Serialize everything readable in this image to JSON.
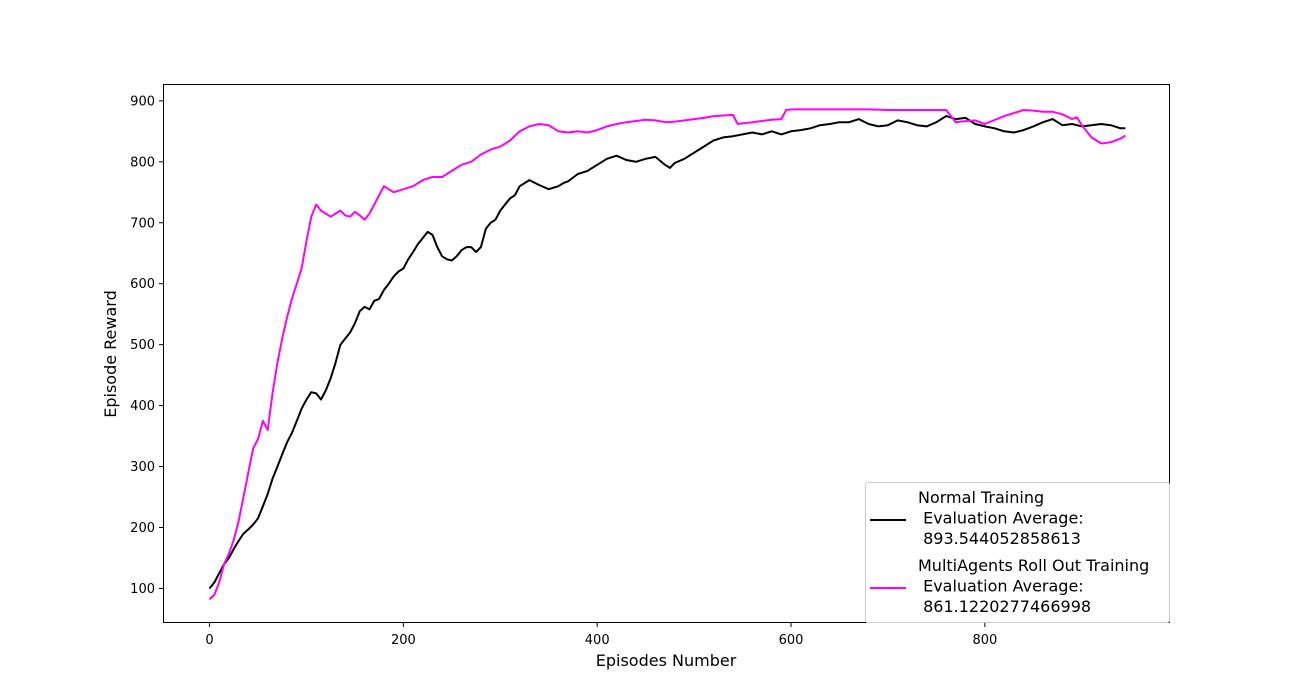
{
  "chart_data": {
    "type": "line",
    "title": "",
    "xlabel": "Episodes Number",
    "ylabel": "Episode Reward",
    "xlim": [
      -47,
      990
    ],
    "ylim": [
      45,
      926
    ],
    "xticks": [
      0,
      200,
      400,
      600,
      800
    ],
    "yticks": [
      100,
      200,
      300,
      400,
      500,
      600,
      700,
      800,
      900
    ],
    "grid": false,
    "legend_position": "lower-right",
    "series": [
      {
        "name": "Normal Training\n Evaluation Average:\n 893.544052858613",
        "legend_lines": [
          "Normal Training",
          " Evaluation Average:",
          " 893.544052858613"
        ],
        "color": "#000000",
        "x": [
          0,
          5,
          10,
          15,
          20,
          25,
          30,
          35,
          40,
          45,
          50,
          55,
          60,
          65,
          70,
          75,
          80,
          85,
          90,
          95,
          100,
          105,
          110,
          115,
          120,
          125,
          130,
          135,
          140,
          145,
          150,
          155,
          160,
          165,
          170,
          175,
          180,
          185,
          190,
          195,
          200,
          205,
          210,
          215,
          220,
          225,
          230,
          235,
          240,
          245,
          250,
          255,
          260,
          265,
          270,
          275,
          280,
          285,
          290,
          295,
          300,
          305,
          310,
          315,
          320,
          330,
          340,
          350,
          360,
          365,
          370,
          380,
          390,
          400,
          410,
          420,
          430,
          440,
          450,
          460,
          470,
          475,
          480,
          490,
          500,
          510,
          520,
          530,
          540,
          550,
          560,
          570,
          580,
          590,
          600,
          610,
          620,
          630,
          640,
          650,
          660,
          670,
          680,
          690,
          700,
          710,
          720,
          730,
          740,
          750,
          760,
          770,
          780,
          790,
          800,
          810,
          820,
          830,
          840,
          850,
          860,
          870,
          880,
          890,
          900,
          910,
          920,
          930,
          940,
          945
        ],
        "values": [
          100,
          110,
          125,
          140,
          150,
          165,
          178,
          190,
          197,
          205,
          215,
          235,
          255,
          280,
          300,
          320,
          340,
          355,
          375,
          395,
          410,
          422,
          420,
          410,
          425,
          445,
          470,
          500,
          510,
          520,
          535,
          555,
          562,
          558,
          572,
          575,
          590,
          600,
          612,
          620,
          625,
          640,
          652,
          665,
          675,
          685,
          680,
          660,
          645,
          640,
          638,
          645,
          655,
          660,
          660,
          652,
          660,
          690,
          700,
          705,
          720,
          730,
          740,
          745,
          760,
          770,
          762,
          755,
          760,
          765,
          768,
          780,
          785,
          795,
          805,
          810,
          803,
          800,
          805,
          808,
          795,
          790,
          798,
          805,
          815,
          825,
          835,
          840,
          842,
          845,
          848,
          845,
          850,
          845,
          850,
          852,
          855,
          860,
          862,
          865,
          865,
          870,
          862,
          858,
          860,
          868,
          865,
          860,
          858,
          865,
          875,
          870,
          872,
          862,
          858,
          855,
          850,
          848,
          852,
          858,
          865,
          870,
          860,
          862,
          858,
          860,
          862,
          860,
          855,
          855
        ]
      },
      {
        "name": "MultiAgents Roll Out Training\n Evaluation Average:\n 861.1220277466998",
        "legend_lines": [
          "MultiAgents Roll Out Training",
          " Evaluation Average:",
          " 861.1220277466998"
        ],
        "color": "#ff00ff",
        "x": [
          0,
          5,
          10,
          15,
          20,
          25,
          30,
          35,
          40,
          45,
          50,
          55,
          60,
          65,
          70,
          75,
          80,
          85,
          90,
          95,
          100,
          105,
          110,
          115,
          120,
          125,
          130,
          135,
          140,
          145,
          150,
          155,
          160,
          165,
          170,
          175,
          180,
          190,
          200,
          210,
          220,
          230,
          240,
          250,
          260,
          270,
          280,
          290,
          300,
          310,
          320,
          330,
          340,
          350,
          360,
          370,
          380,
          390,
          400,
          410,
          420,
          430,
          440,
          450,
          460,
          470,
          480,
          490,
          500,
          510,
          520,
          530,
          540,
          545,
          550,
          560,
          570,
          580,
          590,
          595,
          600,
          620,
          640,
          660,
          680,
          700,
          720,
          740,
          760,
          770,
          775,
          790,
          800,
          820,
          840,
          850,
          860,
          870,
          880,
          890,
          895,
          900,
          910,
          920,
          930,
          940,
          945
        ],
        "values": [
          82,
          90,
          110,
          140,
          157,
          180,
          210,
          250,
          290,
          330,
          345,
          375,
          360,
          420,
          470,
          510,
          545,
          575,
          600,
          625,
          670,
          710,
          730,
          720,
          715,
          710,
          715,
          720,
          712,
          710,
          718,
          712,
          705,
          715,
          730,
          745,
          760,
          750,
          755,
          760,
          770,
          775,
          775,
          785,
          795,
          800,
          812,
          820,
          825,
          835,
          850,
          858,
          862,
          860,
          850,
          848,
          850,
          848,
          852,
          858,
          862,
          865,
          867,
          869,
          868,
          865,
          866,
          868,
          870,
          872,
          875,
          876,
          877,
          862,
          863,
          865,
          867,
          869,
          870,
          885,
          886,
          886,
          886,
          886,
          886,
          885,
          885,
          885,
          885,
          865,
          866,
          868,
          862,
          875,
          885,
          884,
          882,
          882,
          878,
          870,
          873,
          860,
          840,
          830,
          832,
          838,
          843
        ]
      }
    ]
  }
}
